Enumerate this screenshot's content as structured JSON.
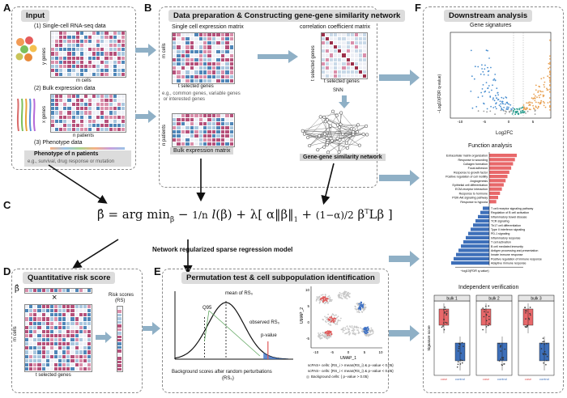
{
  "panelA": {
    "letter": "A",
    "title": "Input",
    "item1": "(1) Single-cell RNA-seq data",
    "y_genes": "y genes",
    "m_cells": "m cells",
    "item2": "(2) Bulk expression data",
    "x_genes": "x genes",
    "n_patients": "n patients",
    "item3": "(3) Phenotype data",
    "phenotype_bar": "Phenotype of n patients",
    "phenotype_eg": "e.g., survival, drug response or mutation"
  },
  "panelB": {
    "letter": "B",
    "title": "Data preparation & Constructing gene-gene similarity network",
    "sc_matrix": "Single cell expression matrix",
    "m_cells": "m cells",
    "t_genes": "t selected genes",
    "eg_text": "e.g., common genes, variable genes\n or interested genes",
    "n_patients": "n patients",
    "bulk_matrix": "Bulk expression matrix",
    "corr_matrix": "correlation coefficient matrix",
    "t_genes_y": "t selected genes",
    "t_genes_x": "t selected genes",
    "snn": "SNN",
    "network": "Gene-gene similarity network"
  },
  "panelC": {
    "letter": "C",
    "caption": "Network regularized sparse regression model"
  },
  "panelD": {
    "letter": "D",
    "title": "Quantitative risk score",
    "beta": "β̂",
    "times": "×",
    "m_cells": "m cells",
    "t_genes": "t selected genes",
    "risk_label": "Risk scores",
    "risk_sub": "(RS)"
  },
  "panelE": {
    "letter": "E",
    "title": "Permutation test & cell subpopulation identification",
    "q95": "Q95",
    "mean": "mean of RS₀",
    "observed": "observed RS₀",
    "pvalue": "p-value",
    "bg_label": "Background scores after random perturbations",
    "bg_sub": "(RS₀)",
    "umap_x": "UMAP_1",
    "umap_y": "UMAP_2",
    "legend": [
      {
        "label": "scPAS+ cells",
        "cond": "{RS_i > mean(RS_i) & p−value < 0.05}",
        "color": "#e05a5a"
      },
      {
        "label": "scPAS− cells",
        "cond": "{RS_i < mean(RS_i) & p−value < 0.05}",
        "color": "#3b6fc4"
      },
      {
        "label": "Background cells",
        "cond": "{ p−value > 0.05}",
        "color": "#c8c8c8"
      }
    ],
    "ticks_x": [
      "-10",
      "-5",
      "0",
      "5",
      "10"
    ],
    "ticks_y": [
      "10",
      "5",
      "0",
      "-5"
    ]
  },
  "panelF": {
    "letter": "F",
    "title": "Downstream analysis",
    "gene_sig": "Gene signatures",
    "volcano_x": "Log2FC",
    "volcano_y": "−Log10(FDR q-value)",
    "volcano_ticks": [
      "-10",
      "-5",
      "0",
      "5"
    ],
    "func_title": "Function analysis",
    "func_up": [
      "Extracellular matrix organization",
      "Response to wounding",
      "Collagen formation",
      "Focal adhesion",
      "Response to growth factor",
      "Positive regulation of cell motility",
      "Angiogenesis",
      "Epithelial cell differentiation",
      "ECM-receptor interaction",
      "Response to hormone",
      "PI3K-Akt signaling pathway",
      "Response to hypoxia"
    ],
    "func_down": [
      "T cell receptor signaling pathway",
      "Regulation of B cell activation",
      "Inflammatory bowel disease",
      "TCR signaling",
      "Th17 cell differentiation",
      "Type II interferon signaling",
      "PD-1 signaling",
      "Inflammatory response",
      "T cell activation",
      "B cell mediated immunity",
      "Antigen processing and presentation",
      "Innate immune response",
      "Positive regulation of immune response",
      "Adaptive immune response"
    ],
    "func_axis": "−log10(FDR q-value)",
    "indep_title": "Independent verification",
    "bulks": [
      "bulk 1",
      "bulk 2",
      "bulk 3"
    ],
    "sig_label": "Signature score",
    "groups": [
      "case",
      "control"
    ]
  },
  "colors": {
    "up": "#e8686a",
    "down": "#3d6fb9",
    "arrow": "#8fb0c6",
    "grey_title": "#dcdcdc"
  }
}
